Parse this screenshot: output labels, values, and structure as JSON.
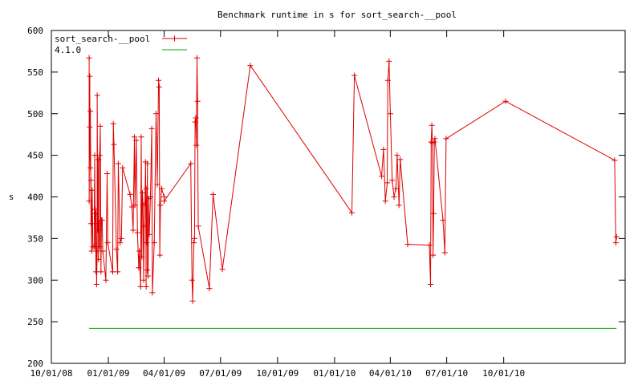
{
  "chart_data": {
    "type": "line",
    "title": "Benchmark runtime in s for sort_search-__pool",
    "xlabel": "",
    "ylabel": "s",
    "ylim": [
      200,
      600
    ],
    "yticks": [
      200,
      250,
      300,
      350,
      400,
      450,
      500,
      550,
      600
    ],
    "xlim": [
      "2008-10-01",
      "2011-04-15"
    ],
    "xticks": [
      {
        "date": "2008-10-01",
        "label": "10/01/08"
      },
      {
        "date": "2009-01-01",
        "label": "01/01/09"
      },
      {
        "date": "2009-04-01",
        "label": "04/01/09"
      },
      {
        "date": "2009-07-01",
        "label": "07/01/09"
      },
      {
        "date": "2009-10-01",
        "label": "10/01/09"
      },
      {
        "date": "2010-01-01",
        "label": "01/01/10"
      },
      {
        "date": "2010-04-01",
        "label": "04/01/10"
      },
      {
        "date": "2010-07-01",
        "label": "07/01/10"
      },
      {
        "date": "2010-10-01",
        "label": "10/01/10"
      }
    ],
    "grid": false,
    "legend_position": "top-left",
    "series": [
      {
        "name": "sort_search-__pool",
        "color": "#dd0000",
        "marker": "plus",
        "points": [
          [
            "2008-12-01",
            567
          ],
          [
            "2008-12-01",
            395
          ],
          [
            "2008-12-02",
            545
          ],
          [
            "2008-12-02",
            484
          ],
          [
            "2008-12-03",
            435
          ],
          [
            "2008-12-03",
            503
          ],
          [
            "2008-12-04",
            368
          ],
          [
            "2008-12-04",
            420
          ],
          [
            "2008-12-05",
            335
          ],
          [
            "2008-12-06",
            408
          ],
          [
            "2008-12-07",
            340
          ],
          [
            "2008-12-09",
            340
          ],
          [
            "2008-12-10",
            450
          ],
          [
            "2008-12-11",
            340
          ],
          [
            "2008-12-11",
            385
          ],
          [
            "2008-12-12",
            310
          ],
          [
            "2008-12-12",
            380
          ],
          [
            "2008-12-13",
            295
          ],
          [
            "2008-12-14",
            335
          ],
          [
            "2008-12-14",
            522
          ],
          [
            "2008-12-15",
            360
          ],
          [
            "2008-12-16",
            445
          ],
          [
            "2008-12-16",
            325
          ],
          [
            "2008-12-17",
            368
          ],
          [
            "2008-12-18",
            340
          ],
          [
            "2008-12-18",
            450
          ],
          [
            "2008-12-19",
            485
          ],
          [
            "2008-12-20",
            310
          ],
          [
            "2008-12-21",
            372
          ],
          [
            "2008-12-22",
            372
          ],
          [
            "2008-12-23",
            335
          ],
          [
            "2008-12-28",
            300
          ],
          [
            "2008-12-30",
            428
          ],
          [
            "2008-12-31",
            345
          ],
          [
            "2009-01-08",
            310
          ],
          [
            "2009-01-09",
            488
          ],
          [
            "2009-01-10",
            463
          ],
          [
            "2009-01-14",
            337
          ],
          [
            "2009-01-16",
            310
          ],
          [
            "2009-01-17",
            440
          ],
          [
            "2009-01-20",
            345
          ],
          [
            "2009-01-22",
            350
          ],
          [
            "2009-01-24",
            435
          ],
          [
            "2009-02-05",
            403
          ],
          [
            "2009-02-08",
            388
          ],
          [
            "2009-02-10",
            360
          ],
          [
            "2009-02-12",
            472
          ],
          [
            "2009-02-13",
            390
          ],
          [
            "2009-02-15",
            468
          ],
          [
            "2009-02-17",
            357
          ],
          [
            "2009-02-19",
            315
          ],
          [
            "2009-02-20",
            335
          ],
          [
            "2009-02-22",
            292
          ],
          [
            "2009-02-23",
            472
          ],
          [
            "2009-02-24",
            328
          ],
          [
            "2009-02-25",
            405
          ],
          [
            "2009-02-26",
            390
          ],
          [
            "2009-02-27",
            300
          ],
          [
            "2009-02-28",
            365
          ],
          [
            "2009-03-01",
            392
          ],
          [
            "2009-03-02",
            442
          ],
          [
            "2009-03-03",
            292
          ],
          [
            "2009-03-03",
            410
          ],
          [
            "2009-03-04",
            345
          ],
          [
            "2009-03-05",
            440
          ],
          [
            "2009-03-05",
            312
          ],
          [
            "2009-03-06",
            305
          ],
          [
            "2009-03-07",
            398
          ],
          [
            "2009-03-08",
            355
          ],
          [
            "2009-03-10",
            400
          ],
          [
            "2009-03-12",
            482
          ],
          [
            "2009-03-13",
            285
          ],
          [
            "2009-03-16",
            345
          ],
          [
            "2009-03-19",
            500
          ],
          [
            "2009-03-21",
            415
          ],
          [
            "2009-03-23",
            540
          ],
          [
            "2009-03-24",
            532
          ],
          [
            "2009-03-25",
            330
          ],
          [
            "2009-03-26",
            390
          ],
          [
            "2009-03-28",
            410
          ],
          [
            "2009-04-01",
            400
          ],
          [
            "2009-04-01",
            395
          ],
          [
            "2009-05-14",
            440
          ],
          [
            "2009-05-16",
            300
          ],
          [
            "2009-05-17",
            275
          ],
          [
            "2009-05-19",
            345
          ],
          [
            "2009-05-20",
            350
          ],
          [
            "2009-05-21",
            490
          ],
          [
            "2009-05-22",
            495
          ],
          [
            "2009-05-23",
            462
          ],
          [
            "2009-05-24",
            567
          ],
          [
            "2009-05-25",
            515
          ],
          [
            "2009-05-26",
            365
          ],
          [
            "2009-06-13",
            290
          ],
          [
            "2009-06-19",
            403
          ],
          [
            "2009-07-04",
            313
          ],
          [
            "2009-08-18",
            558
          ],
          [
            "2010-01-29",
            381
          ],
          [
            "2010-02-02",
            546
          ],
          [
            "2010-03-18",
            425
          ],
          [
            "2010-03-21",
            457
          ],
          [
            "2010-03-24",
            395
          ],
          [
            "2010-03-27",
            417
          ],
          [
            "2010-03-28",
            540
          ],
          [
            "2010-03-30",
            563
          ],
          [
            "2010-04-01",
            500
          ],
          [
            "2010-04-04",
            420
          ],
          [
            "2010-04-07",
            400
          ],
          [
            "2010-04-10",
            410
          ],
          [
            "2010-04-12",
            450
          ],
          [
            "2010-04-15",
            390
          ],
          [
            "2010-04-17",
            445
          ],
          [
            "2010-04-29",
            343
          ],
          [
            "2010-06-03",
            342
          ],
          [
            "2010-06-05",
            295
          ],
          [
            "2010-06-06",
            466
          ],
          [
            "2010-06-07",
            486
          ],
          [
            "2010-06-08",
            465
          ],
          [
            "2010-06-09",
            330
          ],
          [
            "2010-06-10",
            380
          ],
          [
            "2010-06-11",
            466
          ],
          [
            "2010-06-12",
            470
          ],
          [
            "2010-06-25",
            372
          ],
          [
            "2010-06-28",
            333
          ],
          [
            "2010-06-30",
            470
          ],
          [
            "2010-10-04",
            515
          ],
          [
            "2011-03-29",
            444
          ],
          [
            "2011-03-31",
            345
          ],
          [
            "2011-04-01",
            352
          ]
        ]
      },
      {
        "name": "4.1.0",
        "color": "#00aa00",
        "marker": "none",
        "points": [
          [
            "2008-12-01",
            242
          ],
          [
            "2011-04-01",
            242
          ]
        ]
      }
    ]
  }
}
